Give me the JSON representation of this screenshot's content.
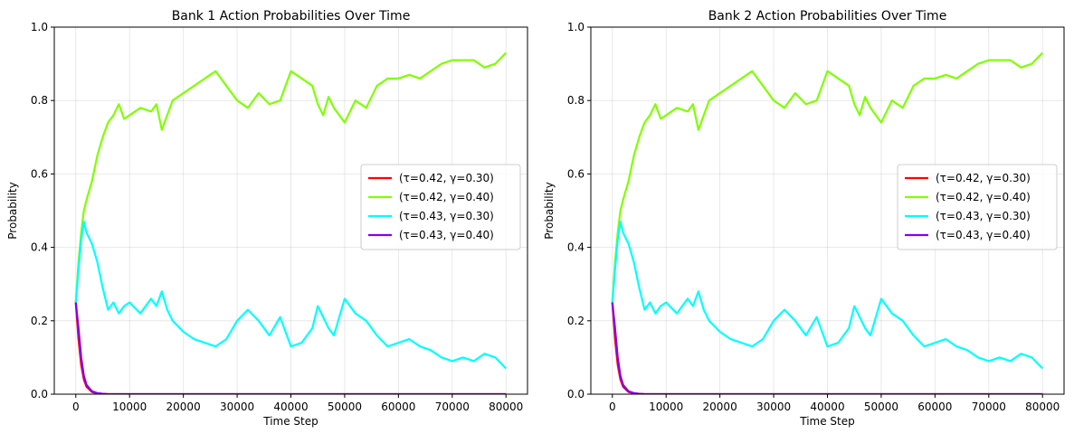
{
  "chart_data": [
    {
      "type": "line",
      "title": "Bank 1 Action Probabilities Over Time",
      "xlabel": "Time Step",
      "ylabel": "Probability",
      "xlim": [
        -4000,
        84000
      ],
      "ylim": [
        0,
        1
      ],
      "xticks": [
        0,
        10000,
        20000,
        30000,
        40000,
        50000,
        60000,
        70000,
        80000
      ],
      "xtick_labels": [
        "0",
        "10000",
        "20000",
        "30000",
        "40000",
        "50000",
        "60000",
        "70000",
        "80000"
      ],
      "yticks": [
        0,
        0.2,
        0.4,
        0.6,
        0.8,
        1.0
      ],
      "ytick_labels": [
        "0.0",
        "0.2",
        "0.4",
        "0.6",
        "0.8",
        "1.0"
      ],
      "grid": true,
      "legend": "center-right",
      "x": [
        0,
        500,
        1000,
        1500,
        2000,
        3000,
        4000,
        5000,
        6000,
        7000,
        8000,
        9000,
        10000,
        12000,
        14000,
        15000,
        16000,
        17000,
        18000,
        20000,
        22000,
        24000,
        26000,
        28000,
        30000,
        32000,
        34000,
        36000,
        38000,
        40000,
        42000,
        44000,
        45000,
        46000,
        47000,
        48000,
        50000,
        52000,
        54000,
        56000,
        58000,
        60000,
        62000,
        64000,
        66000,
        68000,
        70000,
        72000,
        74000,
        76000,
        78000,
        80000
      ],
      "series": [
        {
          "name": "(τ=0.42, γ=0.30)",
          "color": "#ff0000",
          "values": [
            0.25,
            0.15,
            0.08,
            0.04,
            0.02,
            0.006,
            0.002,
            0.001,
            0,
            0,
            0,
            0,
            0,
            0,
            0,
            0,
            0,
            0,
            0,
            0,
            0,
            0,
            0,
            0,
            0,
            0,
            0,
            0,
            0,
            0,
            0,
            0,
            0,
            0,
            0,
            0,
            0,
            0,
            0,
            0,
            0,
            0,
            0,
            0,
            0,
            0,
            0,
            0,
            0,
            0,
            0,
            0
          ]
        },
        {
          "name": "(τ=0.42, γ=0.40)",
          "color": "#80ff00",
          "values": [
            0.25,
            0.36,
            0.44,
            0.5,
            0.53,
            0.58,
            0.65,
            0.7,
            0.74,
            0.76,
            0.79,
            0.75,
            0.76,
            0.78,
            0.77,
            0.79,
            0.72,
            0.76,
            0.8,
            0.82,
            0.84,
            0.86,
            0.88,
            0.84,
            0.8,
            0.78,
            0.82,
            0.79,
            0.8,
            0.88,
            0.86,
            0.84,
            0.79,
            0.76,
            0.81,
            0.78,
            0.74,
            0.8,
            0.78,
            0.84,
            0.86,
            0.86,
            0.87,
            0.86,
            0.88,
            0.9,
            0.91,
            0.91,
            0.91,
            0.89,
            0.9,
            0.93
          ]
        },
        {
          "name": "(τ=0.43, γ=0.30)",
          "color": "#00ffff",
          "values": [
            0.25,
            0.34,
            0.42,
            0.47,
            0.44,
            0.41,
            0.36,
            0.29,
            0.23,
            0.25,
            0.22,
            0.24,
            0.25,
            0.22,
            0.26,
            0.24,
            0.28,
            0.23,
            0.2,
            0.17,
            0.15,
            0.14,
            0.13,
            0.15,
            0.2,
            0.23,
            0.2,
            0.16,
            0.21,
            0.13,
            0.14,
            0.18,
            0.24,
            0.21,
            0.18,
            0.16,
            0.26,
            0.22,
            0.2,
            0.16,
            0.13,
            0.14,
            0.15,
            0.13,
            0.12,
            0.1,
            0.09,
            0.1,
            0.09,
            0.11,
            0.1,
            0.07
          ]
        },
        {
          "name": "(τ=0.43, γ=0.40)",
          "color": "#8000ff",
          "values": [
            0.25,
            0.18,
            0.1,
            0.05,
            0.025,
            0.008,
            0.003,
            0.001,
            0,
            0,
            0,
            0,
            0,
            0,
            0,
            0,
            0,
            0,
            0,
            0,
            0,
            0,
            0,
            0,
            0,
            0,
            0,
            0,
            0,
            0,
            0,
            0,
            0,
            0,
            0,
            0,
            0,
            0,
            0,
            0,
            0,
            0,
            0,
            0,
            0,
            0,
            0,
            0,
            0,
            0,
            0,
            0
          ]
        }
      ]
    },
    {
      "type": "line",
      "title": "Bank 2 Action Probabilities Over Time",
      "xlabel": "Time Step",
      "ylabel": "Probability",
      "xlim": [
        -4000,
        84000
      ],
      "ylim": [
        0,
        1
      ],
      "xticks": [
        0,
        10000,
        20000,
        30000,
        40000,
        50000,
        60000,
        70000,
        80000
      ],
      "xtick_labels": [
        "0",
        "10000",
        "20000",
        "30000",
        "40000",
        "50000",
        "60000",
        "70000",
        "80000"
      ],
      "yticks": [
        0,
        0.2,
        0.4,
        0.6,
        0.8,
        1.0
      ],
      "ytick_labels": [
        "0.0",
        "0.2",
        "0.4",
        "0.6",
        "0.8",
        "1.0"
      ],
      "grid": true,
      "legend": "center-right",
      "x": [
        0,
        500,
        1000,
        1500,
        2000,
        3000,
        4000,
        5000,
        6000,
        7000,
        8000,
        9000,
        10000,
        12000,
        14000,
        15000,
        16000,
        17000,
        18000,
        20000,
        22000,
        24000,
        26000,
        28000,
        30000,
        32000,
        34000,
        36000,
        38000,
        40000,
        42000,
        44000,
        45000,
        46000,
        47000,
        48000,
        50000,
        52000,
        54000,
        56000,
        58000,
        60000,
        62000,
        64000,
        66000,
        68000,
        70000,
        72000,
        74000,
        76000,
        78000,
        80000
      ],
      "series": [
        {
          "name": "(τ=0.42, γ=0.30)",
          "color": "#ff0000",
          "values": [
            0.25,
            0.15,
            0.08,
            0.04,
            0.02,
            0.006,
            0.002,
            0.001,
            0,
            0,
            0,
            0,
            0,
            0,
            0,
            0,
            0,
            0,
            0,
            0,
            0,
            0,
            0,
            0,
            0,
            0,
            0,
            0,
            0,
            0,
            0,
            0,
            0,
            0,
            0,
            0,
            0,
            0,
            0,
            0,
            0,
            0,
            0,
            0,
            0,
            0,
            0,
            0,
            0,
            0,
            0,
            0
          ]
        },
        {
          "name": "(τ=0.42, γ=0.40)",
          "color": "#80ff00",
          "values": [
            0.25,
            0.36,
            0.44,
            0.5,
            0.53,
            0.58,
            0.65,
            0.7,
            0.74,
            0.76,
            0.79,
            0.75,
            0.76,
            0.78,
            0.77,
            0.79,
            0.72,
            0.76,
            0.8,
            0.82,
            0.84,
            0.86,
            0.88,
            0.84,
            0.8,
            0.78,
            0.82,
            0.79,
            0.8,
            0.88,
            0.86,
            0.84,
            0.79,
            0.76,
            0.81,
            0.78,
            0.74,
            0.8,
            0.78,
            0.84,
            0.86,
            0.86,
            0.87,
            0.86,
            0.88,
            0.9,
            0.91,
            0.91,
            0.91,
            0.89,
            0.9,
            0.93
          ]
        },
        {
          "name": "(τ=0.43, γ=0.30)",
          "color": "#00ffff",
          "values": [
            0.25,
            0.34,
            0.42,
            0.47,
            0.44,
            0.41,
            0.36,
            0.29,
            0.23,
            0.25,
            0.22,
            0.24,
            0.25,
            0.22,
            0.26,
            0.24,
            0.28,
            0.23,
            0.2,
            0.17,
            0.15,
            0.14,
            0.13,
            0.15,
            0.2,
            0.23,
            0.2,
            0.16,
            0.21,
            0.13,
            0.14,
            0.18,
            0.24,
            0.21,
            0.18,
            0.16,
            0.26,
            0.22,
            0.2,
            0.16,
            0.13,
            0.14,
            0.15,
            0.13,
            0.12,
            0.1,
            0.09,
            0.1,
            0.09,
            0.11,
            0.1,
            0.07
          ]
        },
        {
          "name": "(τ=0.43, γ=0.40)",
          "color": "#8000ff",
          "values": [
            0.25,
            0.18,
            0.1,
            0.05,
            0.025,
            0.008,
            0.003,
            0.001,
            0,
            0,
            0,
            0,
            0,
            0,
            0,
            0,
            0,
            0,
            0,
            0,
            0,
            0,
            0,
            0,
            0,
            0,
            0,
            0,
            0,
            0,
            0,
            0,
            0,
            0,
            0,
            0,
            0,
            0,
            0,
            0,
            0,
            0,
            0,
            0,
            0,
            0,
            0,
            0,
            0,
            0,
            0,
            0
          ]
        }
      ]
    }
  ]
}
